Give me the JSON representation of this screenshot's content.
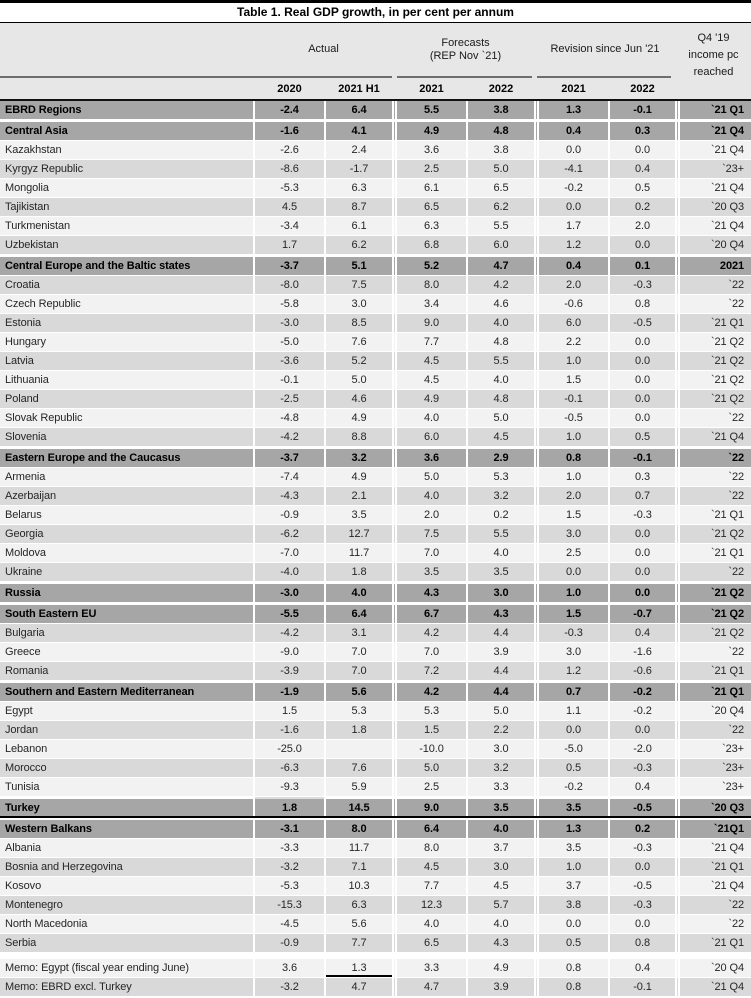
{
  "title": "Table 1. Real GDP growth, in per cent per annum",
  "header": {
    "column_groups": [
      {
        "label": "Actual",
        "lines": [
          "Actual"
        ]
      },
      {
        "label": "Forecasts (REP Nov `21)",
        "lines": [
          "Forecasts",
          "(REP Nov `21)"
        ]
      },
      {
        "label": "Revision since Jun '21",
        "lines": [
          "Revision since Jun '21"
        ]
      },
      {
        "label": "Q4 '19 income pc reached",
        "lines": [
          "Q4 '19",
          "income pc",
          "reached"
        ]
      }
    ],
    "subheaders": [
      "2020",
      "2021 H1",
      "2021",
      "2022",
      "2021",
      "2022"
    ]
  },
  "colors": {
    "region_row_bg": "#a6a6a6",
    "dark_row_bg": "#d9d9d9",
    "light_row_bg": "#f2f2f2",
    "header_bg": "#e8e7e7",
    "rule_black": "#000000",
    "group_underline_gray": "#6e6e6e"
  },
  "rows": [
    {
      "name": "EBRD Regions",
      "style": "region",
      "values": [
        "-2.4",
        "6.4",
        "5.5",
        "3.8",
        "1.3",
        "-0.1"
      ],
      "q4": "`21 Q1"
    },
    {
      "name": "Central Asia",
      "style": "region",
      "gap": true,
      "values": [
        "-1.6",
        "4.1",
        "4.9",
        "4.8",
        "0.4",
        "0.3"
      ],
      "q4": "`21 Q4"
    },
    {
      "name": "Kazakhstan",
      "style": "light",
      "values": [
        "-2.6",
        "2.4",
        "3.6",
        "3.8",
        "0.0",
        "0.0"
      ],
      "q4": "`21 Q4"
    },
    {
      "name": "Kyrgyz Republic",
      "style": "dark",
      "values": [
        "-8.6",
        "-1.7",
        "2.5",
        "5.0",
        "-4.1",
        "0.4"
      ],
      "q4": "`23+"
    },
    {
      "name": "Mongolia",
      "style": "light",
      "values": [
        "-5.3",
        "6.3",
        "6.1",
        "6.5",
        "-0.2",
        "0.5"
      ],
      "q4": "`21 Q4"
    },
    {
      "name": "Tajikistan",
      "style": "dark",
      "values": [
        "4.5",
        "8.7",
        "6.5",
        "6.2",
        "0.0",
        "0.2"
      ],
      "q4": "`20 Q3"
    },
    {
      "name": "Turkmenistan",
      "style": "light",
      "values": [
        "-3.4",
        "6.1",
        "6.3",
        "5.5",
        "1.7",
        "2.0"
      ],
      "q4": "`21 Q4"
    },
    {
      "name": "Uzbekistan",
      "style": "dark",
      "values": [
        "1.7",
        "6.2",
        "6.8",
        "6.0",
        "1.2",
        "0.0"
      ],
      "q4": "`20 Q4"
    },
    {
      "name": "Central Europe and the Baltic states",
      "style": "region",
      "gap": true,
      "values": [
        "-3.7",
        "5.1",
        "5.2",
        "4.7",
        "0.4",
        "0.1"
      ],
      "q4": "2021"
    },
    {
      "name": "Croatia",
      "style": "dark",
      "values": [
        "-8.0",
        "7.5",
        "8.0",
        "4.2",
        "2.0",
        "-0.3"
      ],
      "q4": "`22"
    },
    {
      "name": "Czech Republic",
      "style": "light",
      "values": [
        "-5.8",
        "3.0",
        "3.4",
        "4.6",
        "-0.6",
        "0.8"
      ],
      "q4": "`22"
    },
    {
      "name": "Estonia",
      "style": "dark",
      "values": [
        "-3.0",
        "8.5",
        "9.0",
        "4.0",
        "6.0",
        "-0.5"
      ],
      "q4": "`21 Q1"
    },
    {
      "name": "Hungary",
      "style": "light",
      "values": [
        "-5.0",
        "7.6",
        "7.7",
        "4.8",
        "2.2",
        "0.0"
      ],
      "q4": "`21 Q2"
    },
    {
      "name": "Latvia",
      "style": "dark",
      "values": [
        "-3.6",
        "5.2",
        "4.5",
        "5.5",
        "1.0",
        "0.0"
      ],
      "q4": "`21 Q2"
    },
    {
      "name": "Lithuania",
      "style": "light",
      "values": [
        "-0.1",
        "5.0",
        "4.5",
        "4.0",
        "1.5",
        "0.0"
      ],
      "q4": "`21 Q2"
    },
    {
      "name": "Poland",
      "style": "dark",
      "values": [
        "-2.5",
        "4.6",
        "4.9",
        "4.8",
        "-0.1",
        "0.0"
      ],
      "q4": "`21 Q2"
    },
    {
      "name": "Slovak Republic",
      "style": "light",
      "values": [
        "-4.8",
        "4.9",
        "4.0",
        "5.0",
        "-0.5",
        "0.0"
      ],
      "q4": "`22"
    },
    {
      "name": "Slovenia",
      "style": "dark",
      "values": [
        "-4.2",
        "8.8",
        "6.0",
        "4.5",
        "1.0",
        "0.5"
      ],
      "q4": "`21 Q4"
    },
    {
      "name": "Eastern Europe and the Caucasus",
      "style": "region",
      "gap": true,
      "values": [
        "-3.7",
        "3.2",
        "3.6",
        "2.9",
        "0.8",
        "-0.1"
      ],
      "q4": "`22"
    },
    {
      "name": "Armenia",
      "style": "light",
      "values": [
        "-7.4",
        "4.9",
        "5.0",
        "5.3",
        "1.0",
        "0.3"
      ],
      "q4": "`22"
    },
    {
      "name": "Azerbaijan",
      "style": "dark",
      "values": [
        "-4.3",
        "2.1",
        "4.0",
        "3.2",
        "2.0",
        "0.7"
      ],
      "q4": "`22"
    },
    {
      "name": "Belarus",
      "style": "light",
      "values": [
        "-0.9",
        "3.5",
        "2.0",
        "0.2",
        "1.5",
        "-0.3"
      ],
      "q4": "`21 Q1"
    },
    {
      "name": "Georgia",
      "style": "dark",
      "values": [
        "-6.2",
        "12.7",
        "7.5",
        "5.5",
        "3.0",
        "0.0"
      ],
      "q4": "`21 Q2"
    },
    {
      "name": "Moldova",
      "style": "light",
      "values": [
        "-7.0",
        "11.7",
        "7.0",
        "4.0",
        "2.5",
        "0.0"
      ],
      "q4": "`21 Q1"
    },
    {
      "name": "Ukraine",
      "style": "dark",
      "values": [
        "-4.0",
        "1.8",
        "3.5",
        "3.5",
        "0.0",
        "0.0"
      ],
      "q4": "`22"
    },
    {
      "name": "Russia",
      "style": "region",
      "gap": true,
      "values": [
        "-3.0",
        "4.0",
        "4.3",
        "3.0",
        "1.0",
        "0.0"
      ],
      "q4": "`21 Q2"
    },
    {
      "name": "South Eastern EU",
      "style": "region",
      "gap": true,
      "values": [
        "-5.5",
        "6.4",
        "6.7",
        "4.3",
        "1.5",
        "-0.7"
      ],
      "q4": "`21 Q2"
    },
    {
      "name": "Bulgaria",
      "style": "dark",
      "values": [
        "-4.2",
        "3.1",
        "4.2",
        "4.4",
        "-0.3",
        "0.4"
      ],
      "q4": "`21 Q2"
    },
    {
      "name": "Greece",
      "style": "light",
      "values": [
        "-9.0",
        "7.0",
        "7.0",
        "3.9",
        "3.0",
        "-1.6"
      ],
      "q4": "`22"
    },
    {
      "name": "Romania",
      "style": "dark",
      "values": [
        "-3.9",
        "7.0",
        "7.2",
        "4.4",
        "1.2",
        "-0.6"
      ],
      "q4": "`21 Q1"
    },
    {
      "name": "Southern and Eastern Mediterranean",
      "style": "region",
      "gap": true,
      "values": [
        "-1.9",
        "5.6",
        "4.2",
        "4.4",
        "0.7",
        "-0.2"
      ],
      "q4": "`21 Q1"
    },
    {
      "name": "Egypt",
      "style": "light",
      "values": [
        "1.5",
        "5.3",
        "5.3",
        "5.0",
        "1.1",
        "-0.2"
      ],
      "q4": "`20 Q4"
    },
    {
      "name": "Jordan",
      "style": "dark",
      "values": [
        "-1.6",
        "1.8",
        "1.5",
        "2.2",
        "0.0",
        "0.0"
      ],
      "q4": "`22"
    },
    {
      "name": "Lebanon",
      "style": "light",
      "values": [
        "-25.0",
        "",
        "-10.0",
        "3.0",
        "-5.0",
        "-2.0"
      ],
      "q4": "`23+"
    },
    {
      "name": "Morocco",
      "style": "dark",
      "values": [
        "-6.3",
        "7.6",
        "5.0",
        "3.2",
        "0.5",
        "-0.3"
      ],
      "q4": "`23+"
    },
    {
      "name": "Tunisia",
      "style": "light",
      "values": [
        "-9.3",
        "5.9",
        "2.5",
        "3.3",
        "-0.2",
        "0.4"
      ],
      "q4": "`23+"
    },
    {
      "name": "Turkey",
      "style": "region",
      "gap": true,
      "black_bottom": true,
      "pre_marker": true,
      "values": [
        "1.8",
        "14.5",
        "9.0",
        "3.5",
        "3.5",
        "-0.5"
      ],
      "q4": "`20 Q3"
    },
    {
      "name": "Western Balkans",
      "style": "region",
      "gap": true,
      "values": [
        "-3.1",
        "8.0",
        "6.4",
        "4.0",
        "1.3",
        "0.2"
      ],
      "q4": "`21Q1"
    },
    {
      "name": "Albania",
      "style": "light",
      "values": [
        "-3.3",
        "11.7",
        "8.0",
        "3.7",
        "3.5",
        "-0.3"
      ],
      "q4": "`21 Q4"
    },
    {
      "name": "Bosnia and Herzegovina",
      "style": "dark",
      "values": [
        "-3.2",
        "7.1",
        "4.5",
        "3.0",
        "1.0",
        "0.0"
      ],
      "q4": "`21 Q1"
    },
    {
      "name": "Kosovo",
      "style": "light",
      "values": [
        "-5.3",
        "10.3",
        "7.7",
        "4.5",
        "3.7",
        "-0.5"
      ],
      "q4": "`21 Q4"
    },
    {
      "name": "Montenegro",
      "style": "dark",
      "values": [
        "-15.3",
        "6.3",
        "12.3",
        "5.7",
        "3.8",
        "-0.3"
      ],
      "q4": "`22"
    },
    {
      "name": "North Macedonia",
      "style": "light",
      "values": [
        "-4.5",
        "5.6",
        "4.0",
        "4.0",
        "0.0",
        "0.0"
      ],
      "q4": "`22"
    },
    {
      "name": "Serbia",
      "style": "dark",
      "values": [
        "-0.9",
        "7.7",
        "6.5",
        "4.3",
        "0.5",
        "0.8"
      ],
      "q4": "`21 Q1"
    },
    {
      "name": "Memo: Egypt (fiscal year ending June)",
      "style": "light",
      "memo_gap": true,
      "underline_value": 1,
      "values": [
        "3.6",
        "1.3",
        "3.3",
        "4.9",
        "0.8",
        "0.4"
      ],
      "q4": "`20 Q4"
    },
    {
      "name": "Memo: EBRD excl. Turkey",
      "style": "dark",
      "values": [
        "-3.2",
        "4.7",
        "4.7",
        "3.9",
        "0.8",
        "-0.1"
      ],
      "q4": "`21 Q4"
    }
  ]
}
